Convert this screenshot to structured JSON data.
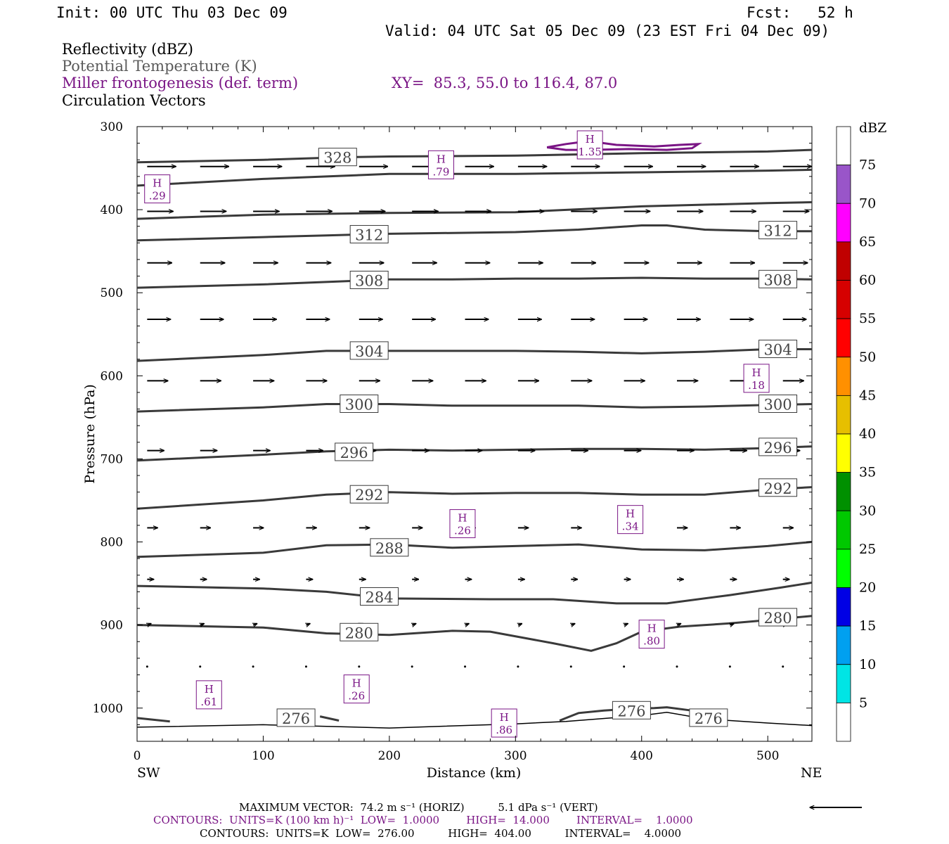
{
  "header": {
    "init": "Init: 00 UTC Thu 03 Dec 09",
    "fcst": "Fcst:   52 h",
    "valid": "Valid: 04 UTC Sat 05 Dec 09 (23 EST Fri 04 Dec 09)",
    "line1": "Reflectivity (dBZ)",
    "line2": "Potential Temperature (K)",
    "line3": "Miller frontogenesis (def. term)",
    "xy": "XY=  85.3, 55.0 to 116.4, 87.0",
    "line4": "Circulation Vectors"
  },
  "colors": {
    "theta": "#3a3a3a",
    "fronto": "#7a1585",
    "vector": "#000000"
  },
  "chart_data": {
    "type": "line",
    "xlabel": "Distance (km)",
    "ylabel": "Pressure (hPa)",
    "xlim": [
      0,
      535
    ],
    "ylim": [
      300,
      1040
    ],
    "x_ticks": [
      0,
      100,
      200,
      300,
      400,
      500
    ],
    "y_ticks": [
      300,
      400,
      500,
      600,
      700,
      800,
      900,
      1000
    ],
    "x_end_labels": [
      "SW",
      "NE"
    ],
    "colorbar": {
      "title": "dBZ",
      "labels": [
        "5",
        "10",
        "15",
        "20",
        "25",
        "30",
        "35",
        "40",
        "45",
        "50",
        "55",
        "60",
        "65",
        "70",
        "75"
      ],
      "colors": [
        "#ffffff",
        "#00e5e5",
        "#00a0f0",
        "#0000e5",
        "#00ff00",
        "#00c800",
        "#009000",
        "#ffff00",
        "#e6bf00",
        "#ff9000",
        "#ff0000",
        "#d60000",
        "#c00000",
        "#ff00ff",
        "#9955c9",
        "#ffffff"
      ]
    },
    "theta_contours": [
      {
        "level": 276,
        "segments": [
          [
            [
              0,
              1012
            ],
            [
              26,
              1016
            ]
          ],
          [
            [
              145,
              1010
            ],
            [
              160,
              1015
            ]
          ],
          [
            [
              335,
              1015
            ],
            [
              350,
              1006
            ],
            [
              370,
              1003
            ],
            [
              390,
              1001
            ],
            [
              410,
              1000
            ],
            [
              420,
              999
            ],
            [
              440,
              1003
            ],
            [
              455,
              1008
            ]
          ]
        ],
        "labels": [
          [
            126,
            1012,
            "276"
          ],
          [
            392,
            1003,
            "276"
          ],
          [
            453,
            1012,
            "276"
          ]
        ]
      },
      {
        "level": 280,
        "points": [
          [
            0,
            900
          ],
          [
            100,
            903
          ],
          [
            150,
            910
          ],
          [
            200,
            912
          ],
          [
            250,
            907
          ],
          [
            280,
            908
          ],
          [
            330,
            922
          ],
          [
            360,
            931
          ],
          [
            380,
            922
          ],
          [
            400,
            908
          ],
          [
            430,
            902
          ],
          [
            470,
            898
          ],
          [
            500,
            894
          ],
          [
            535,
            889
          ]
        ],
        "labels": [
          [
            176,
            909,
            "280"
          ],
          [
            508,
            891,
            "280"
          ]
        ]
      },
      {
        "level": 284,
        "points": [
          [
            0,
            853
          ],
          [
            100,
            856
          ],
          [
            150,
            860
          ],
          [
            200,
            868
          ],
          [
            280,
            869
          ],
          [
            330,
            869
          ],
          [
            380,
            874
          ],
          [
            420,
            874
          ],
          [
            470,
            864
          ],
          [
            510,
            855
          ],
          [
            535,
            849
          ]
        ],
        "labels": [
          [
            192,
            866,
            "284"
          ]
        ]
      },
      {
        "level": 288,
        "points": [
          [
            0,
            818
          ],
          [
            100,
            813
          ],
          [
            150,
            804
          ],
          [
            200,
            803
          ],
          [
            250,
            807
          ],
          [
            300,
            805
          ],
          [
            350,
            803
          ],
          [
            400,
            809
          ],
          [
            450,
            810
          ],
          [
            500,
            805
          ],
          [
            535,
            800
          ]
        ],
        "labels": [
          [
            200,
            807,
            "288"
          ]
        ]
      },
      {
        "level": 292,
        "points": [
          [
            0,
            760
          ],
          [
            100,
            750
          ],
          [
            150,
            743
          ],
          [
            200,
            740
          ],
          [
            250,
            742
          ],
          [
            300,
            741
          ],
          [
            350,
            741
          ],
          [
            400,
            743
          ],
          [
            450,
            743
          ],
          [
            500,
            737
          ],
          [
            535,
            734
          ]
        ],
        "labels": [
          [
            184,
            743,
            "292"
          ],
          [
            508,
            735,
            "292"
          ]
        ]
      },
      {
        "level": 296,
        "points": [
          [
            0,
            702
          ],
          [
            100,
            695
          ],
          [
            150,
            691
          ],
          [
            200,
            689
          ],
          [
            250,
            690
          ],
          [
            300,
            689
          ],
          [
            350,
            688
          ],
          [
            400,
            688
          ],
          [
            450,
            689
          ],
          [
            500,
            687
          ],
          [
            535,
            685
          ]
        ],
        "labels": [
          [
            172,
            692,
            "296"
          ],
          [
            508,
            686,
            "296"
          ]
        ]
      },
      {
        "level": 300,
        "points": [
          [
            0,
            643
          ],
          [
            100,
            638
          ],
          [
            150,
            634
          ],
          [
            200,
            634
          ],
          [
            250,
            636
          ],
          [
            300,
            636
          ],
          [
            350,
            636
          ],
          [
            400,
            638
          ],
          [
            450,
            637
          ],
          [
            500,
            635
          ],
          [
            535,
            634
          ]
        ],
        "labels": [
          [
            176,
            634,
            "300"
          ],
          [
            508,
            634,
            "300"
          ]
        ]
      },
      {
        "level": 304,
        "points": [
          [
            0,
            582
          ],
          [
            100,
            575
          ],
          [
            150,
            570
          ],
          [
            200,
            570
          ],
          [
            250,
            570
          ],
          [
            300,
            570
          ],
          [
            350,
            571
          ],
          [
            400,
            573
          ],
          [
            450,
            571
          ],
          [
            500,
            568
          ],
          [
            535,
            568
          ]
        ],
        "labels": [
          [
            184,
            570,
            "304"
          ],
          [
            508,
            568,
            "304"
          ]
        ]
      },
      {
        "level": 308,
        "points": [
          [
            0,
            494
          ],
          [
            100,
            490
          ],
          [
            150,
            487
          ],
          [
            200,
            484
          ],
          [
            250,
            484
          ],
          [
            300,
            483
          ],
          [
            350,
            483
          ],
          [
            400,
            482
          ],
          [
            450,
            483
          ],
          [
            500,
            483
          ],
          [
            535,
            484
          ]
        ],
        "labels": [
          [
            184,
            485,
            "308"
          ],
          [
            508,
            484,
            "308"
          ]
        ]
      },
      {
        "level": 312,
        "points": [
          [
            0,
            437
          ],
          [
            100,
            433
          ],
          [
            150,
            431
          ],
          [
            200,
            429
          ],
          [
            250,
            428
          ],
          [
            300,
            427
          ],
          [
            350,
            424
          ],
          [
            400,
            419
          ],
          [
            420,
            419
          ],
          [
            450,
            424
          ],
          [
            500,
            426
          ],
          [
            535,
            426
          ]
        ],
        "labels": [
          [
            184,
            430,
            "312"
          ],
          [
            508,
            425,
            "312"
          ]
        ]
      },
      {
        "level": "unlabeled_a",
        "points": [
          [
            0,
            411
          ],
          [
            100,
            406
          ],
          [
            200,
            404
          ],
          [
            300,
            403
          ],
          [
            400,
            396
          ],
          [
            500,
            392
          ],
          [
            535,
            391
          ]
        ],
        "labels": []
      },
      {
        "level": "unlabeled_b",
        "points": [
          [
            0,
            371
          ],
          [
            100,
            363
          ],
          [
            200,
            357
          ],
          [
            300,
            357
          ],
          [
            400,
            355
          ],
          [
            500,
            353
          ],
          [
            535,
            352
          ]
        ],
        "labels": []
      },
      {
        "level": 328,
        "points": [
          [
            0,
            343
          ],
          [
            100,
            340
          ],
          [
            160,
            337
          ],
          [
            200,
            336
          ],
          [
            300,
            335
          ],
          [
            400,
            332
          ],
          [
            500,
            330
          ],
          [
            535,
            328
          ]
        ],
        "labels": [
          [
            159,
            337,
            "328"
          ]
        ]
      }
    ],
    "fronto_maxima": [
      {
        "x": 16,
        "p": 375,
        "value": ".29"
      },
      {
        "x": 241,
        "p": 346,
        "value": ".79"
      },
      {
        "x": 359,
        "p": 322,
        "value": "1.35"
      },
      {
        "x": 491,
        "p": 603,
        "value": ".18"
      },
      {
        "x": 258,
        "p": 778,
        "value": ".26"
      },
      {
        "x": 391,
        "p": 773,
        "value": ".34"
      },
      {
        "x": 408,
        "p": 911,
        "value": ".80"
      },
      {
        "x": 57,
        "p": 984,
        "value": ".61"
      },
      {
        "x": 174,
        "p": 977,
        "value": ".26"
      },
      {
        "x": 291,
        "p": 1018,
        "value": ".86"
      }
    ],
    "fronto_contour": {
      "points": [
        [
          325,
          325
        ],
        [
          340,
          321
        ],
        [
          355,
          318
        ],
        [
          365,
          319
        ],
        [
          380,
          322
        ],
        [
          410,
          324
        ],
        [
          430,
          322
        ],
        [
          445,
          321
        ],
        [
          440,
          326
        ],
        [
          420,
          328
        ],
        [
          390,
          327
        ],
        [
          360,
          328
        ],
        [
          340,
          328
        ],
        [
          325,
          325
        ]
      ]
    },
    "vector_rows": [
      {
        "p": 348,
        "u": 22,
        "w": 0,
        "skip": []
      },
      {
        "p": 402,
        "u": 20,
        "w": 0,
        "skip": []
      },
      {
        "p": 464,
        "u": 19,
        "w": 0,
        "skip": []
      },
      {
        "p": 532,
        "u": 18,
        "w": 0,
        "skip": []
      },
      {
        "p": 606,
        "u": 16,
        "w": 0,
        "skip": []
      },
      {
        "p": 690,
        "u": 13,
        "w": 0,
        "skip": []
      },
      {
        "p": 783,
        "u": 8,
        "w": 0,
        "skip": []
      },
      {
        "p": 845,
        "u": 5,
        "w": 0,
        "skip": []
      },
      {
        "p": 900,
        "u": 3,
        "w": 1,
        "skip": []
      },
      {
        "p": 950,
        "u": 0.5,
        "w": 0,
        "skip": []
      }
    ],
    "reference_vector": {
      "direction": "left"
    }
  },
  "footer": {
    "max_vector": "MAXIMUM VECTOR:  74.2 m s⁻¹ (HORIZ)          5.1 dPa s⁻¹ (VERT)",
    "contours1": "CONTOURS:  UNITS=K (100 km h)⁻¹  LOW=  1.0000        HIGH=  14.000        INTERVAL=    1.0000",
    "contours2": "CONTOURS:  UNITS=K  LOW=  276.00          HIGH=  404.00          INTERVAL=    4.0000"
  }
}
